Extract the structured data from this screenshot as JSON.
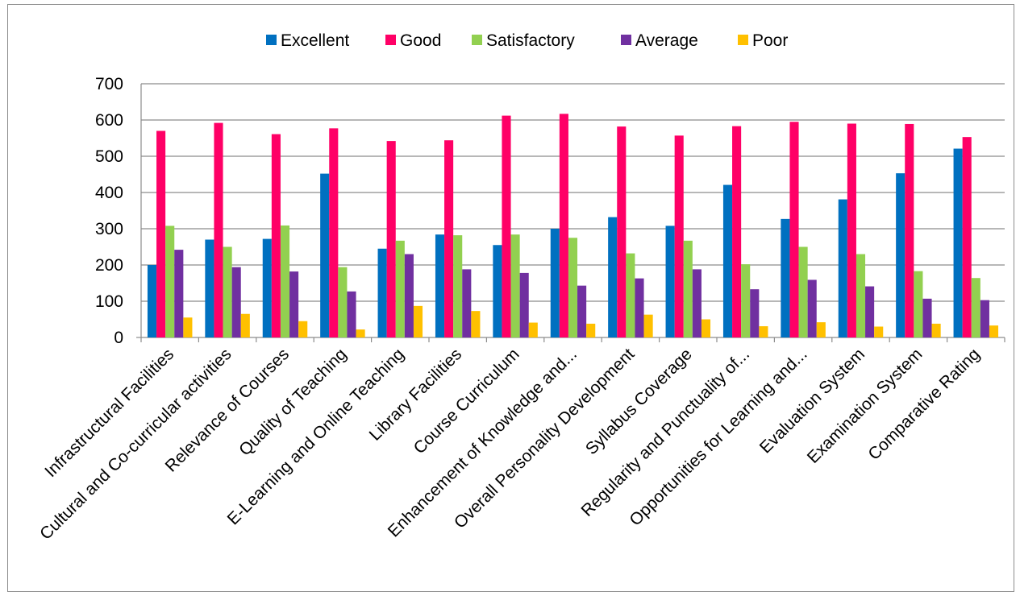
{
  "chart_data": {
    "type": "bar",
    "title": "",
    "xlabel": "",
    "ylabel": "",
    "ylim": [
      0,
      700
    ],
    "yticks": [
      0,
      100,
      200,
      300,
      400,
      500,
      600,
      700
    ],
    "grid": true,
    "legend_position": "top",
    "categories": [
      "Infrastructural Facilities",
      "Cultural and Co-curricular activities",
      "Relevance of Courses",
      "Quality of Teaching",
      "E-Learning and Online Teaching",
      "Library Facilities",
      "Course Curriculum",
      "Enhancement of Knowledge and...",
      "Overall Personality Development",
      "Syllabus Coverage",
      "Regularity and Punctuality of...",
      "Opportunities for Learning and...",
      "Evaluation System",
      "Examination System",
      "Comparative Rating"
    ],
    "series": [
      {
        "name": "Excellent",
        "color": "#0070C0",
        "values": [
          200,
          270,
          272,
          452,
          245,
          284,
          255,
          300,
          332,
          308,
          421,
          327,
          381,
          453,
          521
        ]
      },
      {
        "name": "Good",
        "color": "#FF0066",
        "values": [
          570,
          592,
          561,
          577,
          542,
          544,
          612,
          617,
          582,
          557,
          583,
          595,
          590,
          589,
          553
        ]
      },
      {
        "name": "Satisfactory",
        "color": "#92D050",
        "values": [
          308,
          250,
          309,
          194,
          267,
          282,
          284,
          275,
          232,
          267,
          202,
          250,
          230,
          183,
          164
        ]
      },
      {
        "name": "Average",
        "color": "#7030A0",
        "values": [
          242,
          194,
          182,
          127,
          230,
          188,
          178,
          143,
          163,
          188,
          133,
          159,
          141,
          107,
          103
        ]
      },
      {
        "name": "Poor",
        "color": "#FFC000",
        "values": [
          55,
          65,
          45,
          22,
          87,
          73,
          41,
          38,
          63,
          50,
          31,
          42,
          30,
          38,
          33
        ]
      }
    ]
  }
}
